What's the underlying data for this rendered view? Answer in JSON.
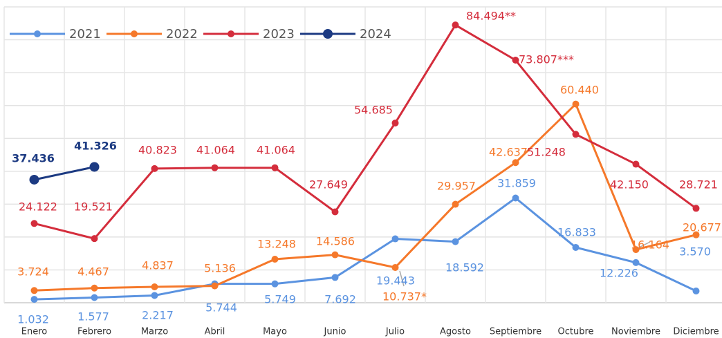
{
  "chart_data": {
    "type": "line",
    "categories": [
      "Enero",
      "Febrero",
      "Marzo",
      "Abril",
      "Mayo",
      "Junio",
      "Julio",
      "Agosto",
      "Septiembre",
      "Octubre",
      "Noviembre",
      "Diciembre"
    ],
    "series": [
      {
        "name": "2021",
        "color": "#5b93e0",
        "values": [
          1032,
          1577,
          2217,
          5744,
          5749,
          7692,
          19443,
          18592,
          31859,
          16833,
          12226,
          3570
        ],
        "value_labels": [
          "1.032",
          "1.577",
          "2.217",
          "5.744",
          "5.749",
          "7.692",
          "19.443",
          "18.592",
          "31.859",
          "16.833",
          "12.226",
          "3.570"
        ]
      },
      {
        "name": "2022",
        "color": "#f5782a",
        "values": [
          3724,
          4467,
          4837,
          5136,
          13248,
          14586,
          10737,
          29957,
          42637,
          60440,
          16164,
          20677
        ],
        "value_labels": [
          "3.724",
          "4.467",
          "4.837",
          "5.136",
          "13.248",
          "14.586",
          "10.737*",
          "29.957",
          "42.637",
          "60.440",
          "16.164",
          "20.677"
        ]
      },
      {
        "name": "2023",
        "color": "#d42d3c",
        "values": [
          24122,
          19521,
          40823,
          41064,
          41064,
          27649,
          54685,
          84494,
          73807,
          51248,
          42150,
          28721
        ],
        "value_labels": [
          "24.122",
          "19.521",
          "40.823",
          "41.064",
          "41.064",
          "27.649",
          "54.685",
          "84.494**",
          "73.807***",
          "51.248",
          "42.150",
          "28.721"
        ]
      },
      {
        "name": "2024",
        "color": "#1c3a82",
        "values": [
          37436,
          41326,
          null,
          null,
          null,
          null,
          null,
          null,
          null,
          null,
          null,
          null
        ],
        "value_labels": [
          "37.436",
          "41.326",
          null,
          null,
          null,
          null,
          null,
          null,
          null,
          null,
          null,
          null
        ]
      }
    ],
    "ylim": [
      0,
      90000
    ],
    "yticks": [
      0,
      10000,
      20000,
      30000,
      40000,
      50000,
      60000,
      70000,
      80000,
      90000
    ],
    "grid": true,
    "legend": "top-left"
  }
}
